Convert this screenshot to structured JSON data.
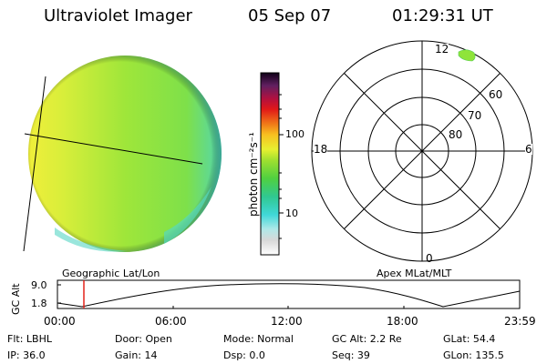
{
  "header": {
    "title": "Ultraviolet Imager",
    "date": "05 Sep 07",
    "time": "01:29:31 UT"
  },
  "labels": {
    "geographic": "Geographic Lat/Lon",
    "apex": "Apex MLat/MLT",
    "gc_alt_axis": "GC Alt"
  },
  "colorbar": {
    "label": "photon cm⁻²s⁻¹",
    "tick_100": "100",
    "tick_10": "10"
  },
  "polar_plot": {
    "mlt_top": "12",
    "mlt_bottom": "0",
    "mlt_left": "18",
    "mlt_right": "6",
    "lat_60": "60",
    "lat_70": "70",
    "lat_80": "80"
  },
  "altitude_plot": {
    "y_top": "9.0",
    "y_bottom": "1.8",
    "x_ticks": [
      "00:00",
      "06:00",
      "12:00",
      "18:00",
      "23:59"
    ],
    "current_time_fraction": 0.0625
  },
  "info": {
    "flt": "Flt: LBHL",
    "door": "Door: Open",
    "mode": "Mode: Normal",
    "gc_alt": "GC Alt: 2.2 Re",
    "glat": "GLat:  54.4",
    "ip": "IP: 36.0",
    "gain": "Gain: 14",
    "dsp": "Dsp:     0.0",
    "seq": "Seq: 39",
    "glon": "GLon: 135.5"
  },
  "colors": {
    "disk_green": "#9ee83a",
    "disk_yellow": "#e2ee38",
    "disk_cyan": "#49d2c4",
    "marker_red": "#e2231a"
  }
}
